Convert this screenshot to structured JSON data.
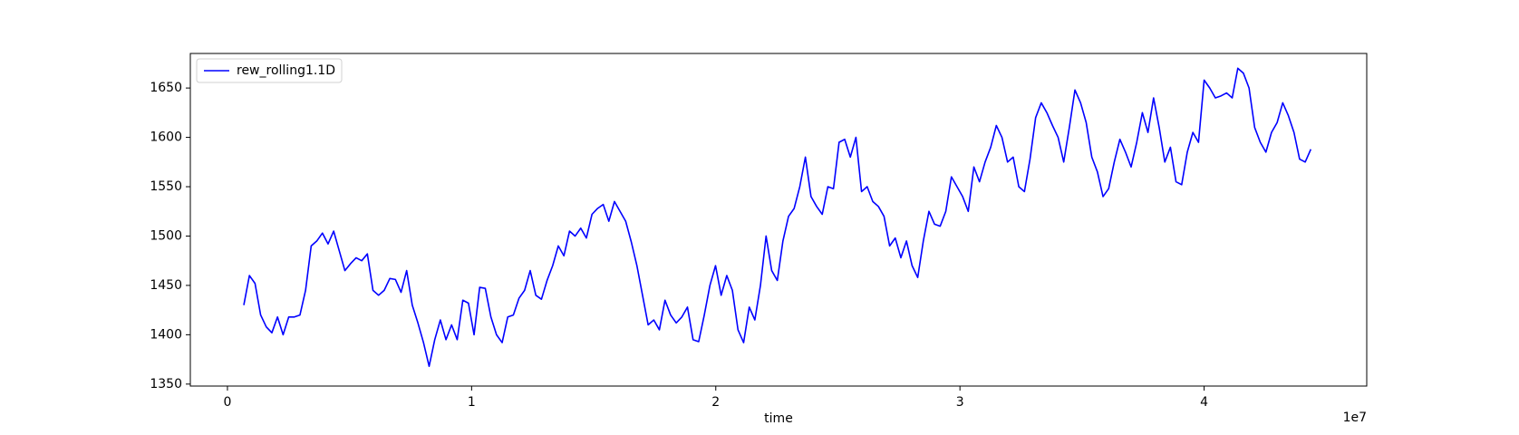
{
  "chart_data": {
    "type": "line",
    "x_label": "time",
    "x_offset_label": "1e7",
    "x": [
      670000,
      900000,
      1130000,
      1360000,
      1590000,
      1820000,
      2050000,
      2280000,
      2510000,
      2740000,
      2970000,
      3200000,
      3430000,
      3660000,
      3890000,
      4120000,
      4350000,
      4580000,
      4810000,
      5040000,
      5270000,
      5500000,
      5730000,
      5960000,
      6190000,
      6420000,
      6650000,
      6880000,
      7110000,
      7340000,
      7570000,
      7800000,
      8030000,
      8260000,
      8490000,
      8720000,
      8950000,
      9180000,
      9410000,
      9640000,
      9870000,
      10100000,
      10330000,
      10560000,
      10790000,
      11020000,
      11250000,
      11480000,
      11710000,
      11940000,
      12170000,
      12400000,
      12630000,
      12860000,
      13090000,
      13320000,
      13550000,
      13780000,
      14010000,
      14240000,
      14470000,
      14700000,
      14930000,
      15160000,
      15390000,
      15620000,
      15850000,
      16080000,
      16310000,
      16540000,
      16770000,
      17000000,
      17230000,
      17460000,
      17690000,
      17920000,
      18150000,
      18380000,
      18610000,
      18840000,
      19070000,
      19300000,
      19530000,
      19760000,
      19990000,
      20220000,
      20450000,
      20680000,
      20910000,
      21140000,
      21370000,
      21600000,
      21830000,
      22060000,
      22290000,
      22520000,
      22750000,
      22980000,
      23210000,
      23440000,
      23670000,
      23900000,
      24130000,
      24360000,
      24590000,
      24820000,
      25050000,
      25280000,
      25510000,
      25740000,
      25970000,
      26200000,
      26430000,
      26660000,
      26890000,
      27120000,
      27350000,
      27580000,
      27810000,
      28040000,
      28270000,
      28500000,
      28730000,
      28960000,
      29190000,
      29420000,
      29650000,
      29880000,
      30110000,
      30340000,
      30570000,
      30800000,
      31030000,
      31260000,
      31490000,
      31720000,
      31950000,
      32180000,
      32410000,
      32640000,
      32870000,
      33100000,
      33330000,
      33560000,
      33790000,
      34020000,
      34250000,
      34480000,
      34710000,
      34940000,
      35170000,
      35400000,
      35630000,
      35860000,
      36090000,
      36320000,
      36550000,
      36780000,
      37010000,
      37240000,
      37470000,
      37700000,
      37930000,
      38160000,
      38390000,
      38620000,
      38850000,
      39080000,
      39310000,
      39540000,
      39770000,
      40000000,
      40230000,
      40460000,
      40690000,
      40920000,
      41150000,
      41380000,
      41610000,
      41840000,
      42070000,
      42300000,
      42530000,
      42760000,
      42990000,
      43220000,
      43450000,
      43680000,
      43910000,
      44140000,
      44370000
    ],
    "series": [
      {
        "name": "rew_rolling1.1D",
        "color": "#0000ff",
        "values": [
          1430,
          1460,
          1452,
          1420,
          1408,
          1402,
          1418,
          1400,
          1418,
          1418,
          1420,
          1445,
          1490,
          1495,
          1503,
          1492,
          1505,
          1485,
          1465,
          1472,
          1478,
          1475,
          1482,
          1445,
          1440,
          1445,
          1457,
          1456,
          1443,
          1465,
          1430,
          1412,
          1392,
          1368,
          1395,
          1415,
          1395,
          1410,
          1395,
          1435,
          1432,
          1400,
          1448,
          1447,
          1418,
          1400,
          1392,
          1418,
          1420,
          1437,
          1445,
          1465,
          1440,
          1436,
          1455,
          1470,
          1490,
          1480,
          1505,
          1500,
          1508,
          1498,
          1522,
          1528,
          1532,
          1515,
          1535,
          1525,
          1515,
          1494,
          1470,
          1440,
          1410,
          1415,
          1405,
          1435,
          1420,
          1412,
          1418,
          1428,
          1395,
          1393,
          1420,
          1450,
          1470,
          1440,
          1460,
          1445,
          1405,
          1392,
          1428,
          1415,
          1450,
          1500,
          1465,
          1455,
          1495,
          1520,
          1528,
          1550,
          1580,
          1540,
          1530,
          1522,
          1550,
          1548,
          1595,
          1598,
          1580,
          1600,
          1545,
          1550,
          1535,
          1530,
          1520,
          1490,
          1498,
          1478,
          1495,
          1470,
          1458,
          1495,
          1525,
          1512,
          1510,
          1525,
          1560,
          1550,
          1540,
          1525,
          1570,
          1555,
          1575,
          1590,
          1612,
          1600,
          1575,
          1580,
          1550,
          1545,
          1578,
          1620,
          1635,
          1625,
          1612,
          1600,
          1575,
          1610,
          1648,
          1635,
          1615,
          1580,
          1565,
          1540,
          1548,
          1575,
          1598,
          1585,
          1570,
          1595,
          1625,
          1605,
          1640,
          1610,
          1575,
          1590,
          1555,
          1552,
          1585,
          1605,
          1595,
          1658,
          1650,
          1640,
          1642,
          1645,
          1640,
          1670,
          1665,
          1650,
          1610,
          1595,
          1585,
          1605,
          1615,
          1635,
          1622,
          1605,
          1578,
          1575,
          1588
        ]
      }
    ],
    "xlim": [
      -1520000,
      46660000
    ],
    "xticks": [
      0,
      {
        "value": 10000000,
        "label": "1"
      },
      {
        "value": 20000000,
        "label": "2"
      },
      {
        "value": 30000000,
        "label": "3"
      },
      {
        "value": 40000000,
        "label": "4"
      }
    ],
    "ylim": [
      1348,
      1685
    ],
    "yticks": [
      1350,
      1400,
      1450,
      1500,
      1550,
      1600,
      1650
    ],
    "grid": false,
    "legend": "upper left"
  }
}
